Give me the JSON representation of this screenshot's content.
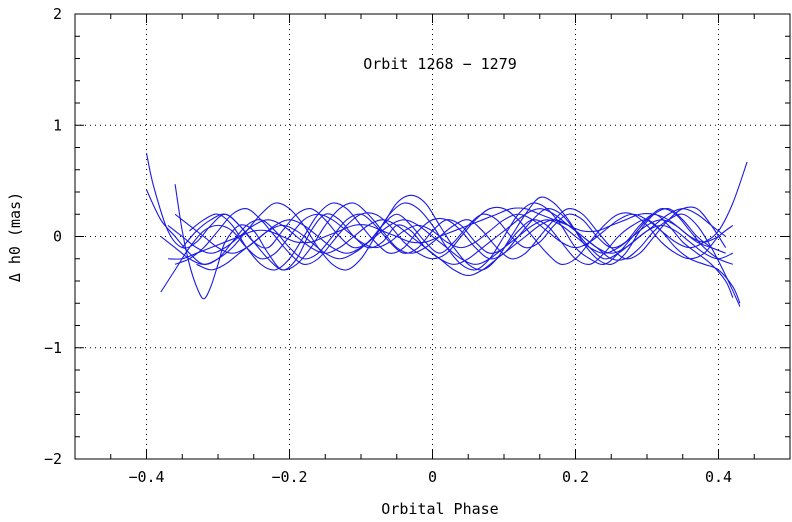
{
  "chart_data": {
    "type": "line",
    "title": "Orbit 1268 − 1279",
    "xlabel": "Orbital Phase",
    "ylabel": "Δ h0 (mas)",
    "xlim": [
      -0.5,
      0.5
    ],
    "ylim": [
      -2,
      2
    ],
    "x_ticks": [
      -0.4,
      -0.2,
      0,
      0.2,
      0.4
    ],
    "x_tick_labels": [
      "−0.4",
      "−0.2",
      "0",
      "0.2",
      "0.4"
    ],
    "y_ticks": [
      -2,
      -1,
      0,
      1,
      2
    ],
    "y_tick_labels": [
      "−2",
      "−1",
      "0",
      "1",
      "2"
    ],
    "grid": true,
    "series_color": "#1a1ae6",
    "series": [
      {
        "x": [
          -0.4,
          -0.39,
          -0.37,
          -0.35,
          -0.33,
          -0.31,
          -0.29,
          -0.27,
          -0.25,
          -0.23,
          -0.21,
          -0.19,
          -0.17,
          -0.15,
          -0.13,
          -0.11,
          -0.09,
          -0.07,
          -0.05,
          -0.03,
          -0.01,
          0.01,
          0.03,
          0.05,
          0.07,
          0.09,
          0.11,
          0.13,
          0.15,
          0.17,
          0.19,
          0.21,
          0.23,
          0.25,
          0.27,
          0.29,
          0.31,
          0.33,
          0.35,
          0.37,
          0.39,
          0.41,
          0.42
        ],
        "y": [
          0.75,
          0.45,
          0.05,
          -0.1,
          -0.05,
          0.1,
          0.2,
          0.1,
          -0.05,
          -0.1,
          0.05,
          0.2,
          0.25,
          0.15,
          0.0,
          -0.1,
          -0.05,
          0.1,
          0.2,
          0.1,
          -0.05,
          -0.15,
          -0.05,
          0.1,
          0.2,
          0.15,
          0.0,
          -0.1,
          -0.05,
          0.1,
          0.2,
          0.15,
          0.0,
          -0.1,
          -0.05,
          0.1,
          0.2,
          0.1,
          -0.05,
          -0.15,
          -0.25,
          -0.4,
          -0.55
        ]
      },
      {
        "x": [
          -0.4,
          -0.38,
          -0.36,
          -0.34,
          -0.32,
          -0.3,
          -0.28,
          -0.26,
          -0.24,
          -0.22,
          -0.2,
          -0.18,
          -0.16,
          -0.14,
          -0.12,
          -0.1,
          -0.08,
          -0.06,
          -0.04,
          -0.02,
          0.0,
          0.02,
          0.04,
          0.06,
          0.08,
          0.1,
          0.12,
          0.14,
          0.16,
          0.18,
          0.2,
          0.22,
          0.24,
          0.26,
          0.28,
          0.3,
          0.32,
          0.34,
          0.36,
          0.38,
          0.4,
          0.42,
          0.43
        ],
        "y": [
          0.42,
          0.15,
          0.0,
          -0.15,
          -0.25,
          -0.2,
          -0.05,
          0.1,
          0.15,
          0.05,
          -0.1,
          -0.2,
          -0.15,
          0.0,
          0.15,
          0.2,
          0.1,
          -0.05,
          -0.15,
          -0.1,
          0.05,
          0.15,
          0.1,
          -0.05,
          -0.15,
          -0.1,
          0.05,
          0.15,
          0.1,
          -0.05,
          -0.2,
          -0.25,
          -0.15,
          0.0,
          0.1,
          0.15,
          0.05,
          -0.1,
          -0.2,
          -0.25,
          -0.3,
          -0.45,
          -0.6
        ]
      },
      {
        "x": [
          -0.38,
          -0.36,
          -0.34,
          -0.32,
          -0.3,
          -0.28,
          -0.26,
          -0.24,
          -0.22,
          -0.2,
          -0.18,
          -0.16,
          -0.14,
          -0.12,
          -0.1,
          -0.08,
          -0.06,
          -0.04,
          -0.02,
          0.0,
          0.02,
          0.04,
          0.06,
          0.08,
          0.1,
          0.12,
          0.14,
          0.16,
          0.18,
          0.2,
          0.22,
          0.24,
          0.26,
          0.28,
          0.3,
          0.32,
          0.34,
          0.36,
          0.38,
          0.4,
          0.42,
          0.44
        ],
        "y": [
          -0.5,
          -0.3,
          -0.1,
          0.05,
          0.1,
          0.05,
          -0.1,
          -0.2,
          -0.15,
          0.0,
          0.15,
          0.2,
          0.15,
          0.05,
          -0.05,
          -0.1,
          -0.05,
          0.05,
          0.1,
          0.05,
          -0.05,
          -0.1,
          -0.05,
          0.05,
          0.15,
          0.2,
          0.15,
          0.05,
          -0.05,
          -0.1,
          -0.05,
          0.05,
          0.15,
          0.2,
          0.15,
          0.05,
          -0.05,
          -0.1,
          -0.05,
          0.05,
          0.3,
          0.67
        ]
      },
      {
        "x": [
          -0.36,
          -0.35,
          -0.34,
          -0.33,
          -0.32,
          -0.31,
          -0.3,
          -0.29,
          -0.27,
          -0.25,
          -0.23,
          -0.21,
          -0.19,
          -0.17,
          -0.15,
          -0.13,
          -0.11,
          -0.09,
          -0.07,
          -0.05,
          -0.03,
          -0.01,
          0.01,
          0.03,
          0.05,
          0.07,
          0.09,
          0.11,
          0.13,
          0.15,
          0.17,
          0.19,
          0.21,
          0.23,
          0.25,
          0.27,
          0.29,
          0.31,
          0.33,
          0.35,
          0.37,
          0.39,
          0.41,
          0.43
        ],
        "y": [
          0.47,
          0.05,
          -0.25,
          -0.45,
          -0.56,
          -0.45,
          -0.25,
          -0.05,
          0.1,
          0.05,
          -0.15,
          -0.3,
          -0.2,
          0.05,
          0.2,
          0.15,
          0.0,
          -0.1,
          -0.05,
          0.1,
          0.05,
          -0.1,
          -0.2,
          -0.25,
          -0.2,
          -0.1,
          0.0,
          0.1,
          0.2,
          0.25,
          0.2,
          0.1,
          0.0,
          -0.1,
          -0.2,
          -0.2,
          -0.1,
          0.05,
          0.15,
          0.2,
          0.1,
          -0.1,
          -0.35,
          -0.63
        ]
      },
      {
        "x": [
          -0.37,
          -0.35,
          -0.33,
          -0.31,
          -0.29,
          -0.27,
          -0.25,
          -0.23,
          -0.21,
          -0.19,
          -0.17,
          -0.15,
          -0.13,
          -0.11,
          -0.09,
          -0.07,
          -0.05,
          -0.03,
          -0.01,
          0.01,
          0.03,
          0.05,
          0.07,
          0.09,
          0.11,
          0.13,
          0.15,
          0.17,
          0.19,
          0.21,
          0.23,
          0.25,
          0.27,
          0.29,
          0.31,
          0.33,
          0.35,
          0.37,
          0.39,
          0.41
        ],
        "y": [
          -0.2,
          -0.2,
          -0.15,
          -0.1,
          -0.05,
          0.0,
          0.05,
          0.05,
          0.0,
          -0.05,
          -0.05,
          0.0,
          0.05,
          0.1,
          0.1,
          0.05,
          0.0,
          -0.05,
          -0.05,
          0.0,
          0.05,
          0.1,
          0.15,
          0.2,
          0.25,
          0.25,
          0.2,
          0.15,
          0.1,
          0.05,
          0.05,
          0.1,
          0.15,
          0.2,
          0.2,
          0.15,
          0.05,
          -0.05,
          -0.1,
          -0.15
        ]
      },
      {
        "x": [
          -0.37,
          -0.35,
          -0.33,
          -0.31,
          -0.29,
          -0.27,
          -0.25,
          -0.23,
          -0.21,
          -0.19,
          -0.17,
          -0.15,
          -0.13,
          -0.11,
          -0.09,
          -0.07,
          -0.05,
          -0.03,
          -0.01,
          0.01,
          0.03,
          0.05,
          0.07,
          0.09,
          0.11,
          0.13,
          0.15,
          0.17,
          0.19,
          0.21,
          0.23,
          0.25,
          0.27,
          0.29,
          0.31,
          0.33,
          0.35,
          0.37,
          0.39,
          0.41
        ],
        "y": [
          0.1,
          0.0,
          -0.1,
          -0.15,
          -0.1,
          0.0,
          0.1,
          0.15,
          0.1,
          0.0,
          -0.1,
          -0.15,
          -0.1,
          0.0,
          0.1,
          0.15,
          0.1,
          0.0,
          -0.1,
          -0.2,
          -0.3,
          -0.35,
          -0.3,
          -0.2,
          -0.1,
          0.0,
          0.1,
          0.15,
          0.1,
          0.0,
          -0.1,
          -0.15,
          -0.1,
          0.0,
          0.1,
          0.2,
          0.25,
          0.2,
          0.1,
          0.0
        ]
      },
      {
        "x": [
          -0.36,
          -0.34,
          -0.32,
          -0.3,
          -0.28,
          -0.26,
          -0.24,
          -0.22,
          -0.2,
          -0.18,
          -0.16,
          -0.14,
          -0.12,
          -0.1,
          -0.08,
          -0.06,
          -0.04,
          -0.02,
          0.0,
          0.02,
          0.04,
          0.06,
          0.08,
          0.1,
          0.12,
          0.14,
          0.16,
          0.18,
          0.2,
          0.22,
          0.24,
          0.26,
          0.28,
          0.3,
          0.32,
          0.34,
          0.36,
          0.38,
          0.4,
          0.42
        ],
        "y": [
          -0.25,
          -0.2,
          -0.1,
          0.05,
          0.2,
          0.25,
          0.15,
          0.0,
          -0.15,
          -0.25,
          -0.2,
          -0.05,
          0.1,
          0.2,
          0.2,
          0.1,
          -0.05,
          -0.15,
          -0.2,
          -0.15,
          0.0,
          0.15,
          0.25,
          0.25,
          0.15,
          0.0,
          -0.15,
          -0.25,
          -0.2,
          -0.05,
          0.1,
          0.2,
          0.2,
          0.1,
          -0.05,
          -0.15,
          -0.2,
          -0.15,
          0.0,
          0.1
        ]
      },
      {
        "x": [
          -0.38,
          -0.36,
          -0.34,
          -0.32,
          -0.3,
          -0.28,
          -0.26,
          -0.24,
          -0.22,
          -0.2,
          -0.18,
          -0.16,
          -0.14,
          -0.12,
          -0.1,
          -0.08,
          -0.06,
          -0.04,
          -0.02,
          0.0,
          0.02,
          0.04,
          0.06,
          0.08,
          0.1,
          0.12,
          0.14,
          0.16,
          0.18,
          0.2,
          0.22,
          0.24,
          0.26,
          0.28,
          0.3,
          0.32,
          0.34,
          0.36,
          0.38,
          0.4,
          0.42
        ],
        "y": [
          0.0,
          -0.1,
          -0.2,
          -0.25,
          -0.2,
          -0.1,
          0.05,
          0.2,
          0.3,
          0.25,
          0.1,
          -0.1,
          -0.25,
          -0.3,
          -0.2,
          0.0,
          0.2,
          0.3,
          0.25,
          0.1,
          -0.1,
          -0.25,
          -0.3,
          -0.2,
          0.0,
          0.2,
          0.3,
          0.25,
          0.1,
          -0.1,
          -0.2,
          -0.25,
          -0.15,
          0.0,
          0.15,
          0.25,
          0.2,
          0.05,
          -0.1,
          -0.2,
          -0.25
        ]
      },
      {
        "x": [
          -0.35,
          -0.33,
          -0.31,
          -0.29,
          -0.27,
          -0.25,
          -0.23,
          -0.21,
          -0.19,
          -0.17,
          -0.15,
          -0.13,
          -0.11,
          -0.09,
          -0.07,
          -0.05,
          -0.03,
          -0.01,
          0.01,
          0.03,
          0.05,
          0.07,
          0.09,
          0.11,
          0.13,
          0.15,
          0.17,
          0.19,
          0.21,
          0.23,
          0.25,
          0.27,
          0.29,
          0.31,
          0.33,
          0.35,
          0.37,
          0.39,
          0.41
        ],
        "y": [
          -0.1,
          0.05,
          0.15,
          0.2,
          0.1,
          -0.05,
          -0.2,
          -0.3,
          -0.25,
          -0.1,
          0.1,
          0.25,
          0.3,
          0.2,
          0.05,
          -0.1,
          -0.15,
          -0.1,
          0.0,
          0.1,
          0.15,
          0.05,
          -0.1,
          -0.2,
          -0.15,
          0.0,
          0.15,
          0.25,
          0.2,
          0.05,
          -0.1,
          -0.2,
          -0.15,
          0.0,
          0.15,
          0.25,
          0.25,
          0.1,
          -0.1
        ]
      },
      {
        "x": [
          -0.34,
          -0.32,
          -0.3,
          -0.28,
          -0.26,
          -0.24,
          -0.22,
          -0.2,
          -0.18,
          -0.16,
          -0.14,
          -0.12,
          -0.1,
          -0.08,
          -0.06,
          -0.04,
          -0.02,
          0.0,
          0.02,
          0.04,
          0.06,
          0.08,
          0.1,
          0.12,
          0.14,
          0.16,
          0.18,
          0.2,
          0.22,
          0.24,
          0.26,
          0.28,
          0.3,
          0.32,
          0.34,
          0.36,
          0.38,
          0.4,
          0.42
        ],
        "y": [
          0.05,
          0.15,
          0.2,
          0.1,
          -0.1,
          -0.25,
          -0.3,
          -0.2,
          0.0,
          0.2,
          0.3,
          0.25,
          0.1,
          -0.05,
          -0.15,
          -0.1,
          0.05,
          0.15,
          0.15,
          0.05,
          -0.1,
          -0.2,
          -0.15,
          0.0,
          0.15,
          0.25,
          0.2,
          0.05,
          -0.1,
          -0.2,
          -0.15,
          -0.05,
          0.05,
          0.1,
          0.05,
          -0.05,
          -0.15,
          -0.2,
          -0.15
        ]
      },
      {
        "x": [
          -0.33,
          -0.31,
          -0.29,
          -0.27,
          -0.25,
          -0.23,
          -0.21,
          -0.19,
          -0.17,
          -0.15,
          -0.13,
          -0.11,
          -0.09,
          -0.07,
          -0.05,
          -0.03,
          -0.01,
          0.01,
          0.03,
          0.05,
          0.07,
          0.09,
          0.11,
          0.13,
          0.15,
          0.17,
          0.19,
          0.21,
          0.23,
          0.25,
          0.27,
          0.29,
          0.31,
          0.33,
          0.35,
          0.37,
          0.39
        ],
        "y": [
          -0.25,
          -0.3,
          -0.25,
          -0.15,
          -0.05,
          0.05,
          0.1,
          0.05,
          -0.05,
          -0.15,
          -0.2,
          -0.15,
          -0.05,
          0.1,
          0.3,
          0.37,
          0.3,
          0.1,
          -0.1,
          -0.25,
          -0.3,
          -0.2,
          0.0,
          0.2,
          0.35,
          0.3,
          0.15,
          -0.05,
          -0.2,
          -0.25,
          -0.15,
          0.05,
          0.2,
          0.25,
          0.15,
          0.0,
          -0.1
        ]
      },
      {
        "x": [
          -0.36,
          -0.34,
          -0.32,
          -0.3,
          -0.28,
          -0.26,
          -0.24,
          -0.22,
          -0.2,
          -0.18,
          -0.16,
          -0.14,
          -0.12,
          -0.1,
          -0.08,
          -0.06,
          -0.04,
          -0.02,
          0.0,
          0.02,
          0.04,
          0.06,
          0.08,
          0.1,
          0.12,
          0.14,
          0.16,
          0.18,
          0.2,
          0.22,
          0.24,
          0.26,
          0.28,
          0.3,
          0.32,
          0.34,
          0.36,
          0.38,
          0.4
        ],
        "y": [
          0.2,
          0.1,
          0.0,
          -0.1,
          -0.15,
          -0.1,
          0.0,
          0.1,
          0.15,
          0.1,
          0.0,
          -0.1,
          -0.15,
          -0.1,
          0.0,
          0.1,
          0.15,
          0.1,
          0.0,
          -0.1,
          -0.2,
          -0.25,
          -0.2,
          -0.1,
          0.0,
          0.1,
          0.15,
          0.1,
          0.0,
          -0.1,
          -0.15,
          -0.1,
          0.0,
          0.1,
          0.15,
          0.1,
          0.0,
          -0.05,
          0.0
        ]
      }
    ]
  }
}
